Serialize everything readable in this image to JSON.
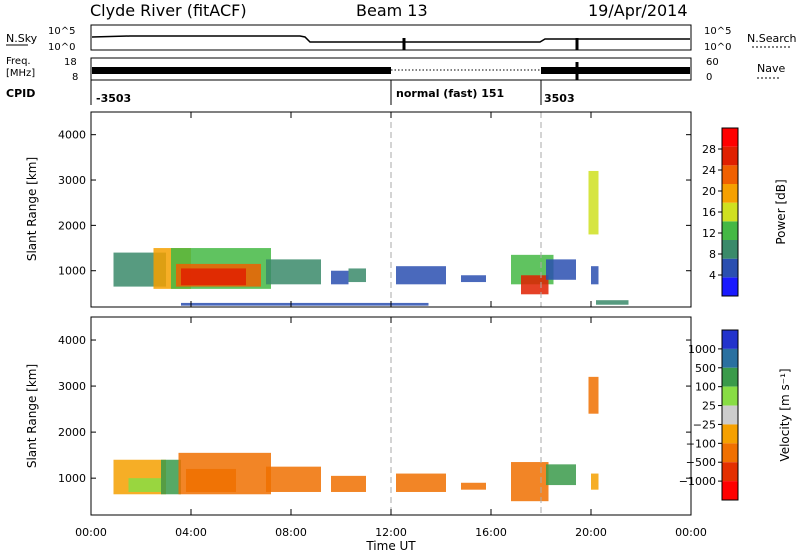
{
  "header": {
    "station": "Clyde River (fitACF)",
    "beam": "Beam 13",
    "date": "19/Apr/2014"
  },
  "nsky_panel": {
    "left_label": "N.Sky",
    "right_label": "N.Search",
    "left_ticks": [
      "10^5",
      "10^0"
    ],
    "right_ticks": [
      "10^5",
      "10^0"
    ]
  },
  "freq_panel": {
    "left_label_line1": "Freq.",
    "left_label_line2": "[MHz]",
    "right_label": "Nave",
    "left_ticks": [
      "18",
      "8"
    ],
    "right_ticks": [
      "60",
      "0"
    ]
  },
  "cpid": {
    "label": "CPID",
    "segments": [
      {
        "text": "-3503",
        "start_hour": 0.0
      },
      {
        "text": "normal (fast) 151",
        "start_hour": 12.0
      },
      {
        "text": "3503",
        "start_hour": 18.0
      }
    ]
  },
  "colors": {
    "power_scale": [
      "#1a1aff",
      "#2a4fb0",
      "#3a8a6a",
      "#44b844",
      "#cfe020",
      "#f5a000",
      "#f06000",
      "#e02000",
      "#ff0000"
    ],
    "velocity_scale": [
      "#ff0000",
      "#e43000",
      "#f07000",
      "#f5a000",
      "#cccccc",
      "#88dd44",
      "#3a9a4a",
      "#2a70a0",
      "#2233cc"
    ]
  },
  "chart_data": [
    {
      "type": "heatmap",
      "name": "power",
      "ylabel": "Slant Range [km]",
      "xlabel": "",
      "xlim": [
        0,
        24
      ],
      "ylim": [
        200,
        4500
      ],
      "xticks": [
        "00:00",
        "04:00",
        "08:00",
        "12:00",
        "16:00",
        "20:00",
        "00:00"
      ],
      "yticks": [
        1000,
        2000,
        3000,
        4000
      ],
      "colorbar": {
        "label": "Power [dB]",
        "range": [
          0,
          32
        ],
        "ticks": [
          4,
          8,
          12,
          16,
          20,
          24,
          28
        ]
      },
      "cells": [
        {
          "t0": 0.9,
          "t1": 3.0,
          "r0": 650,
          "r1": 1400,
          "v": 10
        },
        {
          "t0": 2.5,
          "t1": 4.0,
          "r0": 600,
          "r1": 1500,
          "v": 18
        },
        {
          "t0": 3.2,
          "t1": 7.2,
          "r0": 600,
          "r1": 1500,
          "v": 14
        },
        {
          "t0": 3.4,
          "t1": 6.8,
          "r0": 650,
          "r1": 1150,
          "v": 22
        },
        {
          "t0": 3.6,
          "t1": 6.2,
          "r0": 680,
          "r1": 1050,
          "v": 27
        },
        {
          "t0": 7.0,
          "t1": 9.2,
          "r0": 700,
          "r1": 1250,
          "v": 9
        },
        {
          "t0": 9.6,
          "t1": 10.3,
          "r0": 700,
          "r1": 1000,
          "v": 6
        },
        {
          "t0": 10.3,
          "t1": 11.0,
          "r0": 750,
          "r1": 1050,
          "v": 8
        },
        {
          "t0": 12.2,
          "t1": 14.2,
          "r0": 700,
          "r1": 1100,
          "v": 5
        },
        {
          "t0": 14.8,
          "t1": 15.8,
          "r0": 750,
          "r1": 900,
          "v": 6
        },
        {
          "t0": 16.8,
          "t1": 18.5,
          "r0": 700,
          "r1": 1350,
          "v": 12
        },
        {
          "t0": 17.2,
          "t1": 18.3,
          "r0": 480,
          "r1": 900,
          "v": 27
        },
        {
          "t0": 18.2,
          "t1": 19.4,
          "r0": 800,
          "r1": 1250,
          "v": 7
        },
        {
          "t0": 19.9,
          "t1": 20.3,
          "r0": 1800,
          "r1": 3200,
          "v": 16
        },
        {
          "t0": 20.0,
          "t1": 20.3,
          "r0": 700,
          "r1": 1100,
          "v": 6
        },
        {
          "t0": 20.2,
          "t1": 21.5,
          "r0": 250,
          "r1": 350,
          "v": 10
        },
        {
          "t0": 3.6,
          "t1": 13.5,
          "r0": 230,
          "r1": 290,
          "v": 6
        }
      ]
    },
    {
      "type": "heatmap",
      "name": "velocity",
      "ylabel": "Slant Range [km]",
      "xlabel": "Time UT",
      "xlim": [
        0,
        24
      ],
      "ylim": [
        200,
        4500
      ],
      "xticks": [
        "00:00",
        "04:00",
        "08:00",
        "12:00",
        "16:00",
        "20:00",
        "00:00"
      ],
      "yticks": [
        1000,
        2000,
        3000,
        4000
      ],
      "colorbar": {
        "label": "Velocity [m s⁻¹]",
        "ticks": [
          "1000",
          "500",
          "100",
          "25",
          "−25",
          "−100",
          "−500",
          "−1000"
        ]
      },
      "cells": [
        {
          "t0": 0.9,
          "t1": 3.0,
          "r0": 650,
          "r1": 1400,
          "v": -80
        },
        {
          "t0": 1.5,
          "t1": 2.8,
          "r0": 700,
          "r1": 1000,
          "v": 80
        },
        {
          "t0": 2.8,
          "t1": 3.6,
          "r0": 650,
          "r1": 1400,
          "v": 150
        },
        {
          "t0": 3.5,
          "t1": 7.2,
          "r0": 650,
          "r1": 1550,
          "v": -150
        },
        {
          "t0": 3.8,
          "t1": 5.8,
          "r0": 700,
          "r1": 1200,
          "v": -250
        },
        {
          "t0": 7.0,
          "t1": 9.2,
          "r0": 700,
          "r1": 1250,
          "v": -120
        },
        {
          "t0": 9.6,
          "t1": 11.0,
          "r0": 700,
          "r1": 1050,
          "v": -150
        },
        {
          "t0": 12.2,
          "t1": 14.2,
          "r0": 700,
          "r1": 1100,
          "v": -150
        },
        {
          "t0": 14.8,
          "t1": 15.8,
          "r0": 750,
          "r1": 900,
          "v": -150
        },
        {
          "t0": 16.8,
          "t1": 18.3,
          "r0": 500,
          "r1": 1350,
          "v": -400
        },
        {
          "t0": 18.2,
          "t1": 19.4,
          "r0": 850,
          "r1": 1300,
          "v": 120
        },
        {
          "t0": 19.9,
          "t1": 20.3,
          "r0": 2400,
          "r1": 3200,
          "v": -120
        },
        {
          "t0": 20.0,
          "t1": 20.3,
          "r0": 750,
          "r1": 1100,
          "v": -60
        }
      ]
    }
  ]
}
